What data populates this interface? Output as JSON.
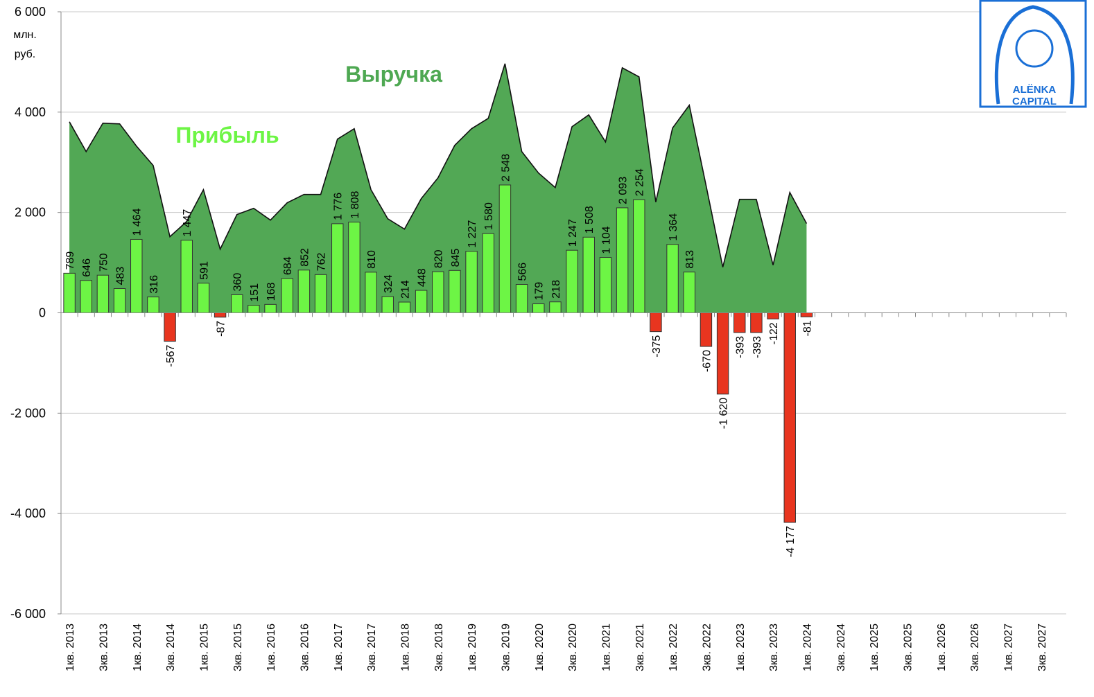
{
  "chart_data": {
    "type": "bar-area",
    "ylabel": [
      "млн.",
      "руб."
    ],
    "annotations": {
      "revenue": "Выручка",
      "profit": "Прибыль"
    },
    "logo": [
      "ALЁNKA",
      "CAPITAL"
    ],
    "categories": [
      "1кв. 2013",
      null,
      "3кв. 2013",
      null,
      "1кв. 2014",
      null,
      "3кв. 2014",
      null,
      "1кв. 2015",
      null,
      "3кв. 2015",
      null,
      "1кв. 2016",
      null,
      "3кв. 2016",
      null,
      "1кв. 2017",
      null,
      "3кв. 2017",
      null,
      "1кв. 2018",
      null,
      "3кв. 2018",
      null,
      "1кв. 2019",
      null,
      "3кв. 2019",
      null,
      "1кв. 2020",
      null,
      "3кв. 2020",
      null,
      "1кв. 2021",
      null,
      "3кв. 2021",
      null,
      "1кв. 2022",
      null,
      "3кв. 2022",
      null,
      "1кв. 2023",
      null,
      "3кв. 2023",
      null,
      "1кв. 2024",
      null,
      "3кв. 2024",
      null,
      "1кв. 2025",
      null,
      "3кв. 2025",
      null,
      "1кв. 2026",
      null,
      "3кв. 2026",
      null,
      "1кв. 2027",
      null,
      "3кв. 2027",
      null
    ],
    "series": [
      {
        "name": "Выручка",
        "kind": "area",
        "color": "#52a855",
        "values": [
          3807,
          3214,
          3780,
          3766,
          3324,
          2938,
          1517,
          1821,
          2455,
          1269,
          1959,
          2083,
          1848,
          2193,
          2359,
          2359,
          3462,
          3669,
          2455,
          1876,
          1669,
          2276,
          2690,
          3338,
          3669,
          3876,
          4966,
          3214,
          2786,
          2497,
          3710,
          3945,
          3407,
          4883,
          4703,
          2207,
          3683,
          4138,
          2538,
          910,
          2262,
          2262,
          952,
          2400,
          1779,
          null,
          null,
          null,
          null,
          null,
          null,
          null,
          null,
          null,
          null,
          null,
          null,
          null,
          null,
          null
        ]
      },
      {
        "name": "Прибыль",
        "kind": "bar",
        "color": "#6df545",
        "negative_color": "#e8351f",
        "values": [
          789,
          646,
          750,
          483,
          1464,
          316,
          -567,
          1447,
          591,
          -87,
          360,
          151,
          168,
          684,
          852,
          762,
          1776,
          1808,
          810,
          324,
          214,
          448,
          820,
          845,
          1227,
          1580,
          2548,
          566,
          179,
          218,
          1247,
          1508,
          1104,
          2093,
          2254,
          -375,
          1364,
          813,
          -670,
          -1620,
          -393,
          -393,
          -122,
          -4177,
          -81,
          null,
          null,
          null,
          null,
          null,
          null,
          null,
          null,
          null,
          null,
          null,
          null,
          null,
          null,
          null
        ],
        "value_labels": [
          "789",
          "646",
          "750",
          "483",
          "1 464",
          "316",
          "-567",
          "1 447",
          "591",
          "-87",
          "360",
          "151",
          "168",
          "684",
          "852",
          "762",
          "1 776",
          "1 808",
          "810",
          "324",
          "214",
          "448",
          "820",
          "845",
          "1 227",
          "1 580",
          "2 548",
          "566",
          "179",
          "218",
          "1 247",
          "1 508",
          "1 104",
          "2 093",
          "2 254",
          "-375",
          "1 364",
          "813",
          "-670",
          "-1 620",
          "-393",
          "-393",
          "-122",
          "-4 177",
          "-81",
          null,
          null,
          null,
          null,
          null,
          null,
          null,
          null,
          null,
          null,
          null,
          null,
          null,
          null,
          null
        ]
      }
    ],
    "ylim": [
      -6000,
      6000
    ],
    "yticks": [
      {
        "value": -6000,
        "label": "-6 000"
      },
      {
        "value": -4000,
        "label": "-4 000"
      },
      {
        "value": -2000,
        "label": "-2 000"
      },
      0,
      {
        "value": 2000,
        "label": "2 000"
      },
      {
        "value": 4000,
        "label": "4 000"
      },
      {
        "value": 6000,
        "label": "6 000"
      }
    ],
    "grid": true
  }
}
